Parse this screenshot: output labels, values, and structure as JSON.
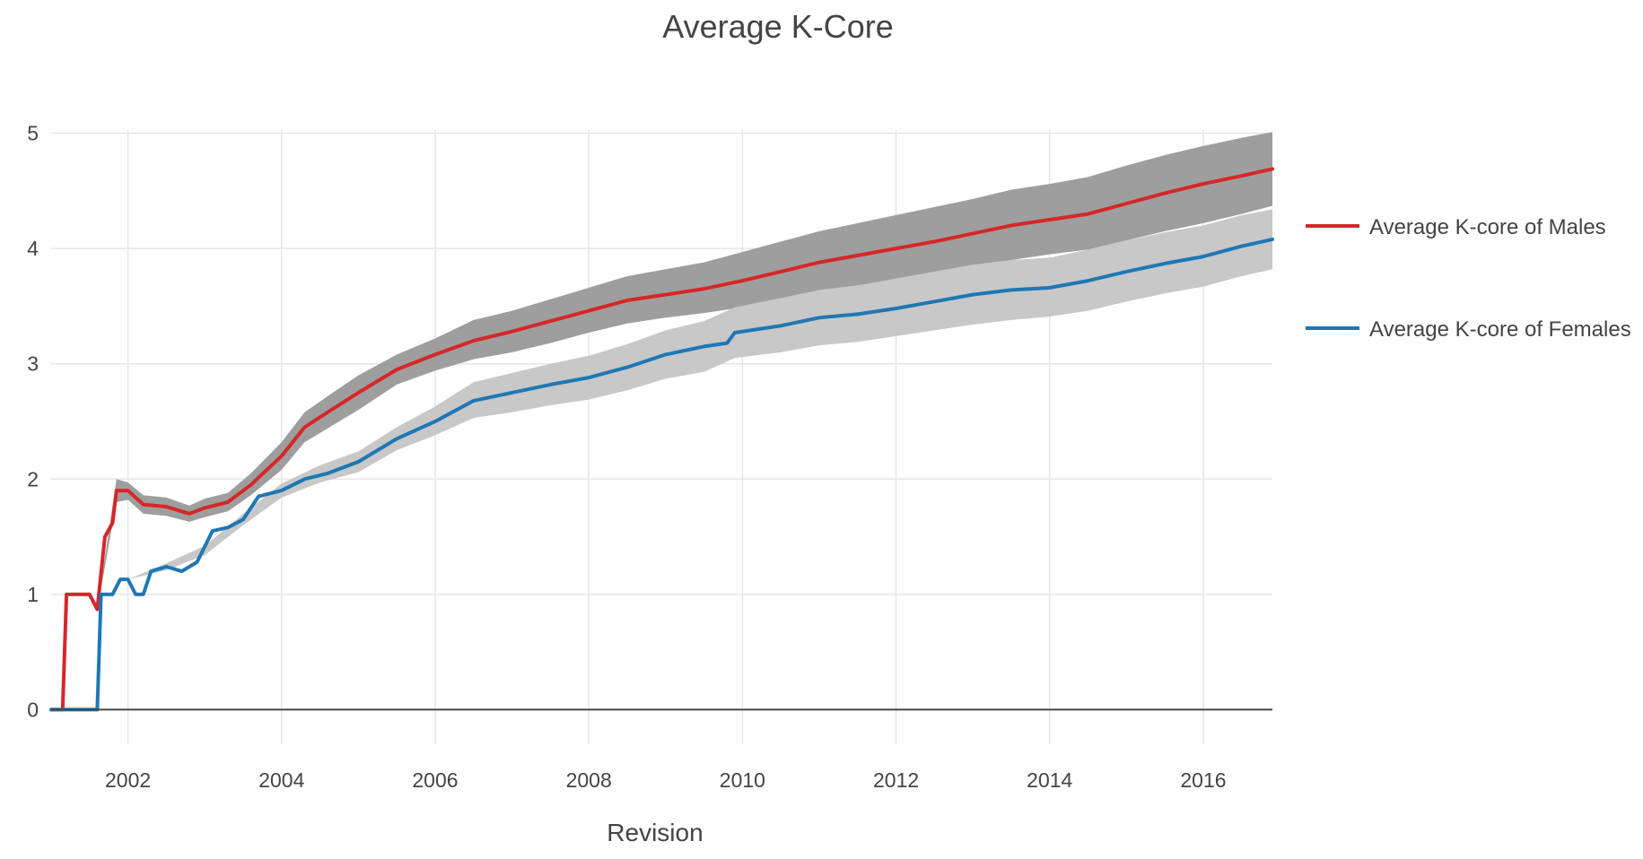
{
  "chart_data": {
    "type": "line",
    "title": "Average K-Core",
    "xlabel": "Revision",
    "ylabel": "",
    "xlim": [
      2001.0,
      2016.9
    ],
    "ylim": [
      -0.3,
      5.3
    ],
    "x_ticks": [
      2002,
      2004,
      2006,
      2008,
      2010,
      2012,
      2014,
      2016
    ],
    "x_tick_labels": [
      "2002",
      "2004",
      "2006",
      "2008",
      "2010",
      "2012",
      "2014",
      "2016"
    ],
    "y_ticks": [
      0,
      1,
      2,
      3,
      4,
      5
    ],
    "y_tick_labels": [
      "0",
      "1",
      "2",
      "3",
      "4",
      "5"
    ],
    "grid": true,
    "legend_position": "right",
    "series": [
      {
        "name": "Average K-core of Males",
        "color": "#d62728",
        "band_color": "#9e9e9e",
        "points": [
          [
            2001.0,
            0
          ],
          [
            2001.15,
            0
          ],
          [
            2001.2,
            1.0
          ],
          [
            2001.5,
            1.0
          ],
          [
            2001.45,
            1.0
          ],
          [
            2001.5,
            1.0
          ],
          [
            2001.6,
            0.87
          ],
          [
            2001.7,
            1.5
          ],
          [
            2001.8,
            1.62
          ],
          [
            2001.85,
            1.9
          ],
          [
            2002.0,
            1.9
          ],
          [
            2002.2,
            1.78
          ],
          [
            2002.5,
            1.76
          ],
          [
            2002.8,
            1.7
          ],
          [
            2003.0,
            1.75
          ],
          [
            2003.3,
            1.8
          ],
          [
            2003.6,
            1.95
          ],
          [
            2004.0,
            2.2
          ],
          [
            2004.3,
            2.45
          ],
          [
            2004.6,
            2.58
          ],
          [
            2005.0,
            2.75
          ],
          [
            2005.5,
            2.95
          ],
          [
            2006.0,
            3.08
          ],
          [
            2006.5,
            3.2
          ],
          [
            2007.0,
            3.28
          ],
          [
            2007.5,
            3.37
          ],
          [
            2008.0,
            3.46
          ],
          [
            2008.5,
            3.55
          ],
          [
            2009.0,
            3.6
          ],
          [
            2009.5,
            3.65
          ],
          [
            2010.0,
            3.72
          ],
          [
            2010.5,
            3.8
          ],
          [
            2011.0,
            3.88
          ],
          [
            2011.5,
            3.94
          ],
          [
            2012.0,
            4.0
          ],
          [
            2012.5,
            4.06
          ],
          [
            2013.0,
            4.13
          ],
          [
            2013.5,
            4.2
          ],
          [
            2014.0,
            4.25
          ],
          [
            2014.5,
            4.3
          ],
          [
            2015.0,
            4.39
          ],
          [
            2015.5,
            4.48
          ],
          [
            2016.0,
            4.56
          ],
          [
            2016.5,
            4.63
          ],
          [
            2016.9,
            4.69
          ]
        ],
        "upper": [
          [
            2001.6,
            0.87
          ],
          [
            2001.85,
            2.0
          ],
          [
            2002.0,
            1.97
          ],
          [
            2002.2,
            1.86
          ],
          [
            2002.5,
            1.84
          ],
          [
            2002.8,
            1.77
          ],
          [
            2003.0,
            1.83
          ],
          [
            2003.3,
            1.88
          ],
          [
            2003.6,
            2.05
          ],
          [
            2004.0,
            2.32
          ],
          [
            2004.3,
            2.58
          ],
          [
            2004.6,
            2.72
          ],
          [
            2005.0,
            2.9
          ],
          [
            2005.5,
            3.08
          ],
          [
            2006.0,
            3.22
          ],
          [
            2006.5,
            3.38
          ],
          [
            2007.0,
            3.46
          ],
          [
            2007.5,
            3.56
          ],
          [
            2008.0,
            3.66
          ],
          [
            2008.5,
            3.76
          ],
          [
            2009.0,
            3.82
          ],
          [
            2009.5,
            3.88
          ],
          [
            2010.0,
            3.97
          ],
          [
            2010.5,
            4.06
          ],
          [
            2011.0,
            4.15
          ],
          [
            2011.5,
            4.22
          ],
          [
            2012.0,
            4.29
          ],
          [
            2012.5,
            4.36
          ],
          [
            2013.0,
            4.43
          ],
          [
            2013.5,
            4.51
          ],
          [
            2014.0,
            4.56
          ],
          [
            2014.5,
            4.62
          ],
          [
            2015.0,
            4.72
          ],
          [
            2015.5,
            4.81
          ],
          [
            2016.0,
            4.89
          ],
          [
            2016.5,
            4.96
          ],
          [
            2016.9,
            5.01
          ]
        ],
        "lower": [
          [
            2001.6,
            0.87
          ],
          [
            2001.85,
            1.8
          ],
          [
            2002.0,
            1.82
          ],
          [
            2002.2,
            1.7
          ],
          [
            2002.5,
            1.68
          ],
          [
            2002.8,
            1.63
          ],
          [
            2003.0,
            1.67
          ],
          [
            2003.3,
            1.72
          ],
          [
            2003.6,
            1.86
          ],
          [
            2004.0,
            2.08
          ],
          [
            2004.3,
            2.32
          ],
          [
            2004.6,
            2.44
          ],
          [
            2005.0,
            2.6
          ],
          [
            2005.5,
            2.82
          ],
          [
            2006.0,
            2.94
          ],
          [
            2006.5,
            3.04
          ],
          [
            2007.0,
            3.1
          ],
          [
            2007.5,
            3.18
          ],
          [
            2008.0,
            3.27
          ],
          [
            2008.5,
            3.35
          ],
          [
            2009.0,
            3.4
          ],
          [
            2009.5,
            3.44
          ],
          [
            2010.0,
            3.49
          ],
          [
            2010.5,
            3.55
          ],
          [
            2011.0,
            3.62
          ],
          [
            2011.5,
            3.68
          ],
          [
            2012.0,
            3.73
          ],
          [
            2012.5,
            3.78
          ],
          [
            2013.0,
            3.84
          ],
          [
            2013.5,
            3.9
          ],
          [
            2014.0,
            3.95
          ],
          [
            2014.5,
            3.99
          ],
          [
            2015.0,
            4.07
          ],
          [
            2015.5,
            4.15
          ],
          [
            2016.0,
            4.22
          ],
          [
            2016.5,
            4.3
          ],
          [
            2016.9,
            4.37
          ]
        ]
      },
      {
        "name": "Average K-core of Females",
        "color": "#1f77b4",
        "band_color": "#c8c8c8",
        "points": [
          [
            2001.0,
            0
          ],
          [
            2001.6,
            0
          ],
          [
            2001.65,
            1.0
          ],
          [
            2001.8,
            1.0
          ],
          [
            2001.9,
            1.13
          ],
          [
            2002.0,
            1.13
          ],
          [
            2002.1,
            1.0
          ],
          [
            2002.2,
            1.0
          ],
          [
            2002.3,
            1.2
          ],
          [
            2002.5,
            1.24
          ],
          [
            2002.7,
            1.2
          ],
          [
            2002.9,
            1.28
          ],
          [
            2003.1,
            1.55
          ],
          [
            2003.3,
            1.58
          ],
          [
            2003.5,
            1.65
          ],
          [
            2003.7,
            1.85
          ],
          [
            2004.0,
            1.9
          ],
          [
            2004.3,
            2.0
          ],
          [
            2004.6,
            2.05
          ],
          [
            2005.0,
            2.15
          ],
          [
            2005.5,
            2.35
          ],
          [
            2006.0,
            2.5
          ],
          [
            2006.5,
            2.68
          ],
          [
            2007.0,
            2.75
          ],
          [
            2007.5,
            2.82
          ],
          [
            2008.0,
            2.88
          ],
          [
            2008.5,
            2.97
          ],
          [
            2009.0,
            3.08
          ],
          [
            2009.5,
            3.15
          ],
          [
            2009.8,
            3.18
          ],
          [
            2009.9,
            3.27
          ],
          [
            2010.5,
            3.33
          ],
          [
            2011.0,
            3.4
          ],
          [
            2011.5,
            3.43
          ],
          [
            2012.0,
            3.48
          ],
          [
            2012.5,
            3.54
          ],
          [
            2013.0,
            3.6
          ],
          [
            2013.5,
            3.64
          ],
          [
            2014.0,
            3.66
          ],
          [
            2014.5,
            3.72
          ],
          [
            2015.0,
            3.8
          ],
          [
            2015.5,
            3.87
          ],
          [
            2016.0,
            3.93
          ],
          [
            2016.5,
            4.02
          ],
          [
            2016.9,
            4.08
          ]
        ],
        "upper": [
          [
            2001.65,
            1.0
          ],
          [
            2002.0,
            1.13
          ],
          [
            2002.5,
            1.27
          ],
          [
            2003.0,
            1.42
          ],
          [
            2003.5,
            1.7
          ],
          [
            2004.0,
            1.96
          ],
          [
            2004.5,
            2.12
          ],
          [
            2005.0,
            2.24
          ],
          [
            2005.5,
            2.45
          ],
          [
            2006.0,
            2.63
          ],
          [
            2006.5,
            2.84
          ],
          [
            2007.0,
            2.92
          ],
          [
            2007.5,
            3.0
          ],
          [
            2008.0,
            3.07
          ],
          [
            2008.5,
            3.17
          ],
          [
            2009.0,
            3.29
          ],
          [
            2009.5,
            3.37
          ],
          [
            2009.9,
            3.49
          ],
          [
            2010.5,
            3.57
          ],
          [
            2011.0,
            3.64
          ],
          [
            2011.5,
            3.68
          ],
          [
            2012.0,
            3.74
          ],
          [
            2012.5,
            3.8
          ],
          [
            2013.0,
            3.86
          ],
          [
            2013.5,
            3.9
          ],
          [
            2014.0,
            3.92
          ],
          [
            2014.5,
            3.99
          ],
          [
            2015.0,
            4.07
          ],
          [
            2015.5,
            4.14
          ],
          [
            2016.0,
            4.2
          ],
          [
            2016.5,
            4.29
          ],
          [
            2016.9,
            4.34
          ]
        ],
        "lower": [
          [
            2001.65,
            1.0
          ],
          [
            2002.0,
            1.13
          ],
          [
            2002.5,
            1.21
          ],
          [
            2003.0,
            1.34
          ],
          [
            2003.5,
            1.6
          ],
          [
            2004.0,
            1.84
          ],
          [
            2004.5,
            1.97
          ],
          [
            2005.0,
            2.06
          ],
          [
            2005.5,
            2.25
          ],
          [
            2006.0,
            2.38
          ],
          [
            2006.5,
            2.53
          ],
          [
            2007.0,
            2.58
          ],
          [
            2007.5,
            2.64
          ],
          [
            2008.0,
            2.69
          ],
          [
            2008.5,
            2.77
          ],
          [
            2009.0,
            2.87
          ],
          [
            2009.5,
            2.93
          ],
          [
            2009.9,
            3.05
          ],
          [
            2010.5,
            3.1
          ],
          [
            2011.0,
            3.16
          ],
          [
            2011.5,
            3.19
          ],
          [
            2012.0,
            3.24
          ],
          [
            2012.5,
            3.29
          ],
          [
            2013.0,
            3.34
          ],
          [
            2013.5,
            3.38
          ],
          [
            2014.0,
            3.41
          ],
          [
            2014.5,
            3.46
          ],
          [
            2015.0,
            3.54
          ],
          [
            2015.5,
            3.61
          ],
          [
            2016.0,
            3.67
          ],
          [
            2016.5,
            3.76
          ],
          [
            2016.9,
            3.82
          ]
        ]
      }
    ]
  }
}
